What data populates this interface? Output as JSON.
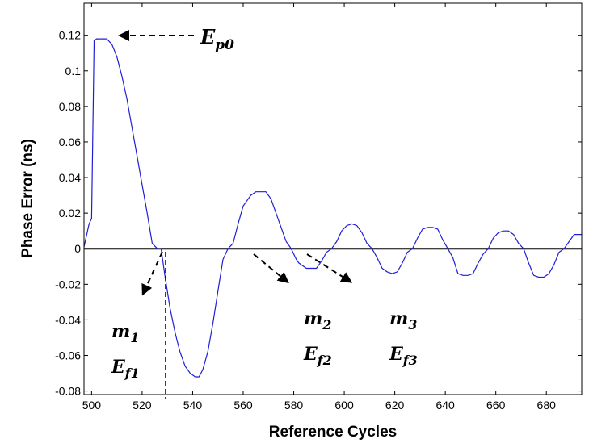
{
  "chart_data": {
    "type": "line",
    "xlabel": "Reference Cycles",
    "ylabel": "Phase Error (ns)",
    "xlim": [
      497,
      694
    ],
    "ylim": [
      -0.082,
      0.138
    ],
    "x_ticks": [
      500,
      520,
      540,
      560,
      580,
      600,
      620,
      640,
      660,
      680
    ],
    "x_tick_labels": [
      "500",
      "520",
      "540",
      "560",
      "580",
      "600",
      "620",
      "640",
      "660",
      "680"
    ],
    "y_ticks": [
      0.12,
      0.1,
      0.08,
      0.06,
      0.04,
      0.02,
      0,
      -0.02,
      -0.04,
      -0.06,
      -0.08
    ],
    "y_tick_labels": [
      "0.12",
      "0.1",
      "0.08",
      "0.06",
      "0.04",
      "0.02",
      "0",
      "-0.02",
      "-0.04",
      "-0.06",
      "-0.08"
    ],
    "grid": false,
    "zero_line": true,
    "series": [
      {
        "color": "#1f1fd6",
        "x": [
          497,
          499,
          500,
          501,
          502,
          504,
          506,
          508,
          510,
          512,
          514,
          516,
          518,
          520,
          522,
          524,
          526,
          527.5,
          529,
          531,
          533,
          535,
          537,
          539,
          541,
          542.5,
          544,
          546,
          548,
          550,
          552,
          554,
          556,
          558,
          560,
          561.5,
          563,
          565,
          567,
          569,
          571,
          573,
          575,
          577,
          579,
          581,
          582,
          583,
          585,
          587,
          589,
          591,
          593,
          595,
          597,
          599,
          601,
          603,
          605,
          607,
          609,
          611,
          613,
          615,
          617,
          619,
          621,
          623,
          625,
          627,
          629,
          631,
          633,
          635,
          637,
          639,
          641,
          643,
          645,
          647,
          649,
          651,
          653,
          655,
          657,
          659,
          661,
          663,
          665,
          667,
          669,
          671,
          673,
          675,
          677,
          679,
          681,
          683,
          685,
          687,
          689,
          691,
          693,
          694
        ],
        "y": [
          0.001,
          0.014,
          0.017,
          0.117,
          0.118,
          0.118,
          0.118,
          0.115,
          0.108,
          0.097,
          0.084,
          0.068,
          0.052,
          0.036,
          0.02,
          0.003,
          0.0,
          0.0,
          -0.015,
          -0.033,
          -0.047,
          -0.058,
          -0.066,
          -0.07,
          -0.072,
          -0.072,
          -0.068,
          -0.058,
          -0.042,
          -0.024,
          -0.006,
          0.0,
          0.003,
          0.014,
          0.024,
          0.027,
          0.03,
          0.032,
          0.032,
          0.032,
          0.028,
          0.02,
          0.012,
          0.004,
          0.0,
          -0.006,
          -0.008,
          -0.009,
          -0.011,
          -0.011,
          -0.011,
          -0.007,
          -0.002,
          0.0,
          0.004,
          0.01,
          0.013,
          0.014,
          0.013,
          0.009,
          0.003,
          0.0,
          -0.005,
          -0.011,
          -0.013,
          -0.014,
          -0.013,
          -0.008,
          -0.002,
          0.0,
          0.006,
          0.011,
          0.012,
          0.012,
          0.011,
          0.005,
          0.0,
          -0.005,
          -0.014,
          -0.015,
          -0.015,
          -0.014,
          -0.008,
          -0.003,
          0.0,
          0.006,
          0.009,
          0.01,
          0.01,
          0.008,
          0.003,
          0.0,
          -0.008,
          -0.015,
          -0.016,
          -0.016,
          -0.014,
          -0.009,
          -0.002,
          0.0,
          0.004,
          0.008,
          0.008,
          0.008
        ]
      }
    ],
    "annotations": [
      {
        "id": "ep0",
        "text": "E",
        "sub": "p0",
        "arrow": "left",
        "points_to": [
          505,
          0.118
        ]
      },
      {
        "id": "m1",
        "text": "m",
        "sub": "1"
      },
      {
        "id": "ef1",
        "text": "E",
        "sub": "f1"
      },
      {
        "id": "m2",
        "text": "m",
        "sub": "2"
      },
      {
        "id": "ef2",
        "text": "E",
        "sub": "f2"
      },
      {
        "id": "m3",
        "text": "m",
        "sub": "3"
      },
      {
        "id": "ef3",
        "text": "E",
        "sub": "f3"
      }
    ]
  }
}
